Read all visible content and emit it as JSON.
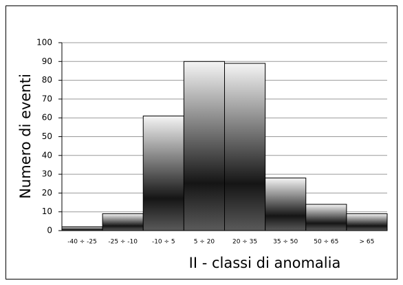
{
  "chart_data": {
    "type": "bar",
    "categories": [
      "-40 ÷ -25",
      "-25 ÷ -10",
      "-10 ÷ 5",
      "5 ÷ 20",
      "20 ÷ 35",
      "35 ÷ 50",
      "50 ÷ 65",
      "> 65"
    ],
    "values": [
      2,
      9,
      61,
      90,
      89,
      28,
      14,
      9
    ],
    "x_label": "II - classi di anomalia",
    "y_label": "Numero di eventi",
    "ylim": [
      0,
      100
    ],
    "yticks": [
      0,
      10,
      20,
      30,
      40,
      50,
      60,
      70,
      80,
      90,
      100
    ],
    "grid": true
  }
}
